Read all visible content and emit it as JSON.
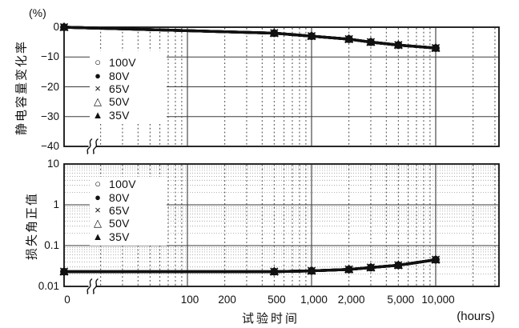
{
  "x_axis": {
    "title": "试验时间",
    "unit": "(hours)",
    "scale": "log",
    "zero_break": true,
    "ticks": [
      {
        "label": "0",
        "value": 0
      },
      {
        "label": "100",
        "value": 100
      },
      {
        "label": "200",
        "value": 200
      },
      {
        "label": "500",
        "value": 500
      },
      {
        "label": "1,000",
        "value": 1000
      },
      {
        "label": "2,000",
        "value": 2000
      },
      {
        "label": "5,000",
        "value": 5000
      },
      {
        "label": "10,000",
        "value": 10000
      }
    ]
  },
  "legend": {
    "items": [
      {
        "symbol": "open-circle",
        "glyph": "○",
        "label": "100V"
      },
      {
        "symbol": "filled-circle",
        "glyph": "●",
        "label": "80V"
      },
      {
        "symbol": "x-mark",
        "glyph": "×",
        "label": "65V"
      },
      {
        "symbol": "open-triangle",
        "glyph": "△",
        "label": "50V"
      },
      {
        "symbol": "filled-triangle",
        "glyph": "▲",
        "label": "35V"
      }
    ]
  },
  "colors": {
    "line": "#111111",
    "frame": "#111111",
    "grid_major": "#3a3a3a",
    "grid_minor_v": "#3c3c3c",
    "grid_minor_h": "#9a9a9a",
    "text": "#111111",
    "background": "#ffffff"
  },
  "chart_data": [
    {
      "type": "line",
      "panel": "top",
      "ylabel": "静电容量变化率",
      "y_unit": "(%)",
      "y_scale": "linear",
      "ylim": [
        -40,
        0
      ],
      "yticks": [
        {
          "label": "0",
          "value": 0
        },
        {
          "label": "−10",
          "value": -10
        },
        {
          "label": "−20",
          "value": -20
        },
        {
          "label": "−30",
          "value": -30
        },
        {
          "label": "−40",
          "value": -40
        }
      ],
      "xlabel": "试验时间",
      "x_unit": "(hours)",
      "x": [
        0,
        500,
        1000,
        2000,
        3000,
        5000,
        10000
      ],
      "series": [
        {
          "name": "100V",
          "values": [
            0,
            -2,
            -3,
            -4,
            -5,
            -6,
            -7
          ]
        },
        {
          "name": "80V",
          "values": [
            0,
            -2,
            -3,
            -4,
            -5,
            -6,
            -7
          ]
        },
        {
          "name": "65V",
          "values": [
            0,
            -2,
            -3,
            -4,
            -5,
            -6,
            -7
          ]
        },
        {
          "name": "50V",
          "values": [
            0,
            -2,
            -3,
            -4,
            -5,
            -6,
            -7
          ]
        },
        {
          "name": "35V",
          "values": [
            0,
            -2,
            -3,
            -4,
            -5,
            -6,
            -7
          ]
        }
      ],
      "series_overlap": true,
      "grid": true,
      "legend_position": "upper-left-inside"
    },
    {
      "type": "line",
      "panel": "bottom",
      "ylabel": "损失角正值",
      "y_unit": "",
      "y_scale": "log",
      "ylim": [
        0.01,
        10
      ],
      "yticks": [
        {
          "label": "10",
          "value": 10
        },
        {
          "label": "1",
          "value": 1
        },
        {
          "label": "0.1",
          "value": 0.1
        },
        {
          "label": "0.01",
          "value": 0.01
        }
      ],
      "xlabel": "试验时间",
      "x_unit": "(hours)",
      "x": [
        0,
        500,
        1000,
        2000,
        3000,
        5000,
        10000
      ],
      "series": [
        {
          "name": "100V",
          "values": [
            0.023,
            0.023,
            0.024,
            0.026,
            0.029,
            0.033,
            0.045
          ]
        },
        {
          "name": "80V",
          "values": [
            0.023,
            0.023,
            0.024,
            0.026,
            0.029,
            0.033,
            0.045
          ]
        },
        {
          "name": "65V",
          "values": [
            0.023,
            0.023,
            0.024,
            0.026,
            0.029,
            0.033,
            0.045
          ]
        },
        {
          "name": "50V",
          "values": [
            0.023,
            0.023,
            0.024,
            0.026,
            0.029,
            0.033,
            0.045
          ]
        },
        {
          "name": "35V",
          "values": [
            0.023,
            0.023,
            0.024,
            0.026,
            0.029,
            0.033,
            0.045
          ]
        }
      ],
      "series_overlap": true,
      "grid": true,
      "legend_position": "upper-left-inside"
    }
  ]
}
